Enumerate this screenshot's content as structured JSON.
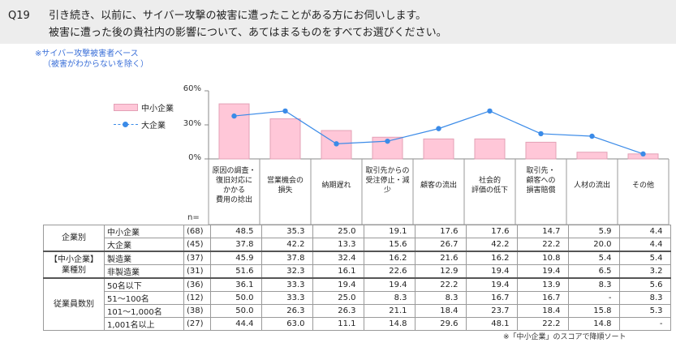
{
  "header": {
    "question_number": "Q19",
    "line1": "引き続き、以前に、サイバー攻撃の被害に遭ったことがある方にお伺いします。",
    "line2": "被害に遭った後の貴社内の影響について、あてはまるものをすべてお選びください。"
  },
  "base_note": {
    "line1": "※サイバー攻撃被害者ベース",
    "line2": "（被害がわからないを除く）"
  },
  "legend": {
    "bar_label": "中小企業",
    "line_label": "大企業"
  },
  "colors": {
    "bar_fill": "#ffc7d8",
    "bar_stroke": "#e3a0b6",
    "line": "#3b8be8"
  },
  "chart_data": {
    "type": "bar",
    "categories": [
      "原因の調査・\n復旧対応に\nかかる\n費用の捻出",
      "営業機会の\n損失",
      "納期遅れ",
      "取引先からの\n受注停止・減\n少",
      "顧客の流出",
      "社会的\n評価の低下",
      "取引先・\n顧客への\n損害賠償",
      "人材の流出",
      "その他"
    ],
    "series": [
      {
        "name": "中小企業",
        "type": "bar",
        "values": [
          48.5,
          35.3,
          25.0,
          19.1,
          17.6,
          17.6,
          14.7,
          5.9,
          4.4
        ]
      },
      {
        "name": "大企業",
        "type": "line",
        "values": [
          37.8,
          42.2,
          13.3,
          15.6,
          26.7,
          42.2,
          22.2,
          20.0,
          4.4
        ]
      }
    ],
    "yticks": [
      "60%",
      "30%",
      "0%"
    ],
    "ylim": [
      0,
      60
    ],
    "grid": false,
    "legend_position": "top-left"
  },
  "table": {
    "n_header": "n=",
    "groups": [
      {
        "label": "企業別",
        "rows": [
          {
            "label": "中小企業",
            "n": "(68)",
            "values": [
              "48.5",
              "35.3",
              "25.0",
              "19.1",
              "17.6",
              "17.6",
              "14.7",
              "5.9",
              "4.4"
            ]
          },
          {
            "label": "大企業",
            "n": "(45)",
            "values": [
              "37.8",
              "42.2",
              "13.3",
              "15.6",
              "26.7",
              "42.2",
              "22.2",
              "20.0",
              "4.4"
            ]
          }
        ]
      },
      {
        "label": "【中小企業】\n業種別",
        "rows": [
          {
            "label": "製造業",
            "n": "(37)",
            "values": [
              "45.9",
              "37.8",
              "32.4",
              "16.2",
              "21.6",
              "16.2",
              "10.8",
              "5.4",
              "5.4"
            ]
          },
          {
            "label": "非製造業",
            "n": "(31)",
            "values": [
              "51.6",
              "32.3",
              "16.1",
              "22.6",
              "12.9",
              "19.4",
              "19.4",
              "6.5",
              "3.2"
            ]
          }
        ]
      },
      {
        "label": "従業員数別",
        "rows": [
          {
            "label": "50名以下",
            "n": "(36)",
            "values": [
              "36.1",
              "33.3",
              "19.4",
              "19.4",
              "22.2",
              "19.4",
              "13.9",
              "8.3",
              "5.6"
            ]
          },
          {
            "label": "51～100名",
            "n": "(12)",
            "values": [
              "50.0",
              "33.3",
              "25.0",
              "8.3",
              "8.3",
              "16.7",
              "16.7",
              "-",
              "8.3"
            ]
          },
          {
            "label": "101～1,000名",
            "n": "(38)",
            "values": [
              "50.0",
              "26.3",
              "26.3",
              "21.1",
              "18.4",
              "23.7",
              "18.4",
              "15.8",
              "5.3"
            ]
          },
          {
            "label": "1,001名以上",
            "n": "(27)",
            "values": [
              "44.4",
              "63.0",
              "11.1",
              "14.8",
              "29.6",
              "48.1",
              "22.2",
              "14.8",
              "-"
            ]
          }
        ]
      }
    ]
  },
  "footnote": "※「中小企業」のスコアで降順ソート"
}
